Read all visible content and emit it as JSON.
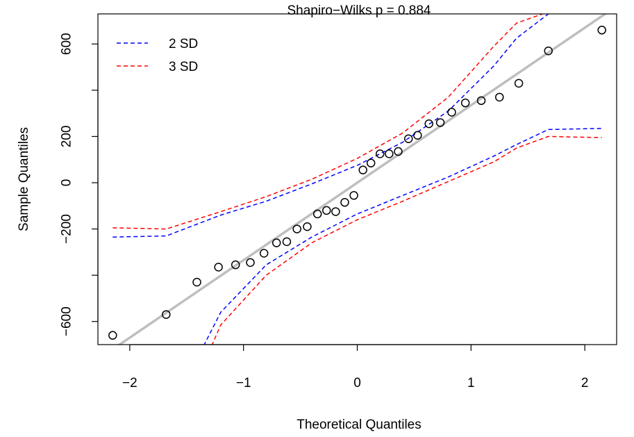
{
  "chart_data": {
    "type": "scatter",
    "title": "Shapiro−Wilks p =  0.884",
    "xlabel": "Theoretical Quantiles",
    "ylabel": "Sample Quantiles",
    "xlim": [
      -2.28,
      2.28
    ],
    "ylim": [
      -700,
      730
    ],
    "x_ticks": [
      -2,
      -1,
      0,
      1,
      2
    ],
    "x_tick_labels": [
      "−2",
      "−1",
      "0",
      "1",
      "2"
    ],
    "y_ticks": [
      -600,
      -200,
      200,
      600
    ],
    "y_tick_labels": [
      "−600",
      "−200",
      "200",
      "600"
    ],
    "y_minor_ticks": [
      -400,
      0,
      400
    ],
    "y_minor_tick_labels": [
      "",
      "0",
      ""
    ],
    "grid": false,
    "legend_position": "top-left",
    "legend": [
      {
        "label": "2 SD",
        "color": "#0000ff",
        "style": "dashed"
      },
      {
        "label": "3 SD",
        "color": "#ff0000",
        "style": "dashed"
      }
    ],
    "reference_line": {
      "intercept": 0,
      "slope": 335,
      "color": "#bebebe"
    },
    "points": {
      "x": [
        -2.15,
        -1.68,
        -1.41,
        -1.22,
        -1.07,
        -0.94,
        -0.82,
        -0.71,
        -0.62,
        -0.53,
        -0.44,
        -0.35,
        -0.27,
        -0.19,
        -0.11,
        -0.03,
        0.05,
        0.12,
        0.2,
        0.28,
        0.36,
        0.45,
        0.53,
        0.63,
        0.73,
        0.83,
        0.95,
        1.09,
        1.25,
        1.42,
        1.68,
        2.15
      ],
      "y": [
        -660,
        -570,
        -430,
        -365,
        -355,
        -345,
        -305,
        -260,
        -255,
        -200,
        -190,
        -135,
        -120,
        -125,
        -85,
        -55,
        55,
        85,
        125,
        125,
        135,
        190,
        205,
        255,
        260,
        305,
        345,
        355,
        370,
        430,
        570,
        660
      ]
    },
    "envelopes": [
      {
        "name": "2 SD",
        "color": "#0000ff",
        "upper": {
          "x": [
            -2.15,
            -1.68,
            -1.2,
            -0.8,
            -0.4,
            0,
            0.4,
            0.8,
            1.2,
            1.4,
            1.68
          ],
          "y": [
            -235,
            -230,
            -140,
            -80,
            -5,
            75,
            175,
            310,
            505,
            625,
            730
          ]
        },
        "lower": {
          "x": [
            -1.35,
            -1.2,
            -0.8,
            -0.4,
            0,
            0.4,
            0.8,
            1.2,
            1.4,
            1.68,
            2.15
          ],
          "y": [
            -705,
            -560,
            -355,
            -235,
            -135,
            -55,
            25,
            115,
            165,
            230,
            235
          ]
        }
      },
      {
        "name": "3 SD",
        "color": "#ff0000",
        "upper": {
          "x": [
            -2.15,
            -1.68,
            -1.2,
            -0.8,
            -0.4,
            0,
            0.4,
            0.8,
            1.2,
            1.4,
            1.63
          ],
          "y": [
            -195,
            -200,
            -125,
            -60,
            15,
            105,
            215,
            370,
            590,
            690,
            730
          ]
        },
        "lower": {
          "x": [
            -1.28,
            -1.2,
            -0.8,
            -0.4,
            0,
            0.4,
            0.8,
            1.2,
            1.4,
            1.68,
            2.15
          ],
          "y": [
            -705,
            -615,
            -400,
            -260,
            -160,
            -80,
            5,
            90,
            150,
            200,
            195
          ]
        }
      }
    ]
  }
}
